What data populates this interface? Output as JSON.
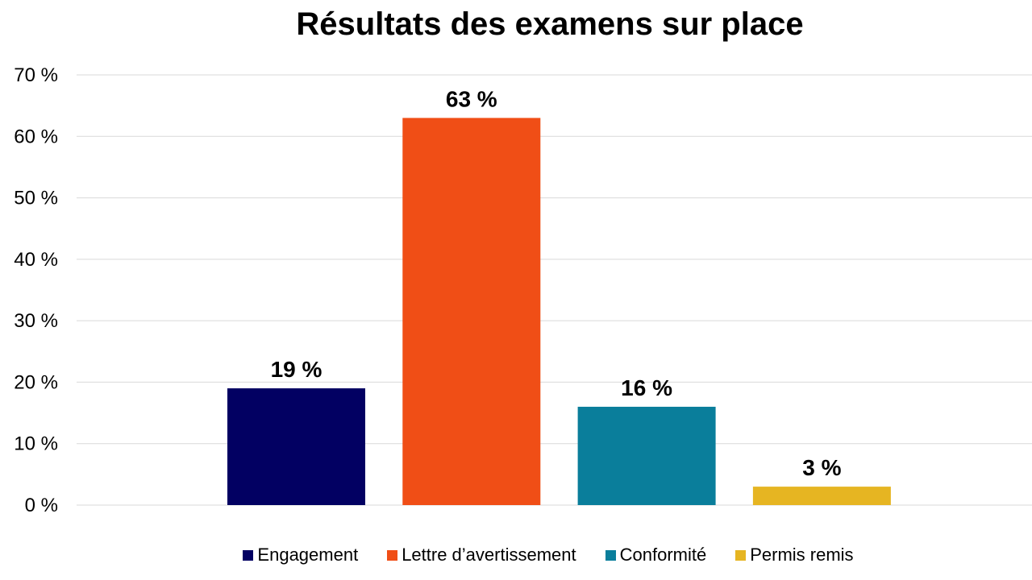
{
  "chart_data": {
    "type": "bar",
    "title": "Résultats des examens sur place",
    "categories": [
      "Engagement",
      "Lettre d’avertissement",
      "Conformité",
      "Permis remis"
    ],
    "values": [
      19,
      63,
      16,
      3
    ],
    "data_labels": [
      "19 %",
      "63 %",
      "16 %",
      "3 %"
    ],
    "colors": [
      "#020062",
      "#F04E16",
      "#0A7E9B",
      "#E6B522"
    ],
    "y_ticks": [
      "0 %",
      "10 %",
      "20 %",
      "30 %",
      "40 %",
      "50 %",
      "60 %",
      "70 %"
    ],
    "ylim": [
      0,
      70
    ],
    "grid": true,
    "legend_position": "bottom"
  }
}
